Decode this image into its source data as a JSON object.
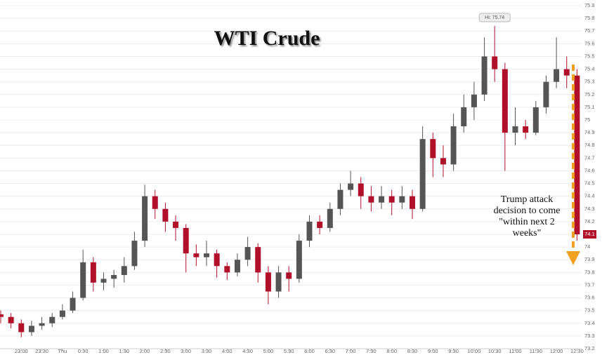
{
  "chart_data": {
    "type": "candlestick",
    "title": "WTI Crude",
    "annotation": [
      "Trump attack",
      "decision to come",
      "\"within next 2",
      "weeks\""
    ],
    "hi_label": "Hi: 75.74",
    "last_price_label": "74.1",
    "up_color": "#555555",
    "down_color": "#b0102a",
    "grid": true,
    "categories": [
      null,
      null,
      "23:00",
      null,
      "23:30",
      null,
      "Thu",
      null,
      "0:30",
      null,
      "1:00",
      null,
      "1:30",
      null,
      "2:00",
      null,
      "2:30",
      null,
      "3:00",
      null,
      "3:30",
      null,
      "4:00",
      null,
      "4:30",
      null,
      "5:00",
      null,
      "5:30",
      null,
      "6:00",
      null,
      "6:30",
      null,
      "7:00",
      null,
      "7:30",
      null,
      "8:00",
      null,
      "8:30",
      null,
      "9:00",
      null,
      "9:30",
      null,
      "10:00",
      null,
      "10:30",
      null,
      "11:00",
      null,
      "11:30",
      null,
      "12:00",
      null,
      "12:30"
    ],
    "open": [
      73.47,
      73.45,
      73.4,
      73.33,
      73.38,
      73.4,
      73.45,
      73.5,
      73.6,
      73.88,
      73.72,
      73.75,
      73.78,
      73.85,
      74.05,
      74.4,
      74.3,
      74.2,
      74.15,
      73.95,
      73.92,
      73.95,
      73.85,
      73.8,
      73.9,
      74.0,
      73.8,
      73.65,
      73.8,
      73.75,
      74.05,
      74.2,
      74.15,
      74.3,
      74.45,
      74.5,
      74.4,
      74.35,
      74.4,
      74.35,
      74.4,
      74.3,
      74.85,
      74.7,
      74.65,
      74.95,
      75.1,
      75.2,
      75.5,
      75.4,
      74.9,
      74.95,
      74.9,
      75.1,
      75.3,
      75.4,
      75.35
    ],
    "high": [
      73.5,
      73.48,
      73.43,
      73.42,
      73.45,
      73.48,
      73.55,
      73.65,
      73.98,
      73.92,
      73.8,
      73.82,
      73.92,
      74.12,
      74.49,
      74.45,
      74.35,
      74.25,
      74.18,
      74.02,
      74.05,
      73.98,
      73.88,
      73.95,
      74.08,
      74.03,
      73.85,
      73.85,
      73.85,
      74.1,
      74.25,
      74.25,
      74.35,
      74.5,
      74.6,
      74.55,
      74.48,
      74.48,
      74.45,
      74.48,
      74.45,
      74.95,
      74.9,
      74.8,
      75.05,
      75.2,
      75.3,
      75.65,
      75.74,
      75.45,
      75.1,
      75.0,
      75.15,
      75.35,
      75.65,
      75.5,
      75.4
    ],
    "low": [
      73.4,
      73.36,
      73.29,
      73.3,
      73.35,
      73.37,
      73.43,
      73.48,
      73.58,
      73.65,
      73.66,
      73.68,
      73.72,
      73.82,
      74.0,
      74.22,
      74.12,
      74.05,
      73.8,
      73.85,
      73.85,
      73.76,
      73.74,
      73.77,
      73.85,
      73.72,
      73.55,
      73.6,
      73.65,
      73.72,
      74.0,
      74.1,
      74.12,
      74.25,
      74.4,
      74.3,
      74.28,
      74.3,
      74.25,
      74.3,
      74.22,
      74.28,
      74.55,
      74.55,
      74.6,
      74.9,
      75.0,
      75.15,
      75.3,
      74.6,
      74.8,
      74.85,
      74.88,
      75.05,
      75.25,
      75.25,
      74.05
    ],
    "close": [
      73.45,
      73.4,
      73.33,
      73.38,
      73.4,
      73.45,
      73.5,
      73.6,
      73.88,
      73.72,
      73.75,
      73.78,
      73.85,
      74.05,
      74.4,
      74.3,
      74.2,
      74.15,
      73.95,
      73.92,
      73.95,
      73.85,
      73.8,
      73.9,
      74.0,
      73.8,
      73.65,
      73.8,
      73.75,
      74.05,
      74.2,
      74.15,
      74.3,
      74.45,
      74.5,
      74.4,
      74.35,
      74.4,
      74.35,
      74.4,
      74.3,
      74.85,
      74.7,
      74.65,
      74.95,
      75.1,
      75.2,
      75.5,
      75.4,
      74.9,
      74.95,
      74.9,
      75.1,
      75.3,
      75.4,
      75.35,
      74.1
    ],
    "ylim": [
      73.2,
      75.9
    ],
    "yticks": [
      73.2,
      73.3,
      73.4,
      73.5,
      73.6,
      73.7,
      73.8,
      73.9,
      74,
      74.1,
      74.2,
      74.3,
      74.4,
      74.5,
      74.6,
      74.7,
      74.8,
      74.9,
      75,
      75.1,
      75.2,
      75.3,
      75.4,
      75.5,
      75.6,
      75.7,
      75.8,
      75.9
    ]
  }
}
